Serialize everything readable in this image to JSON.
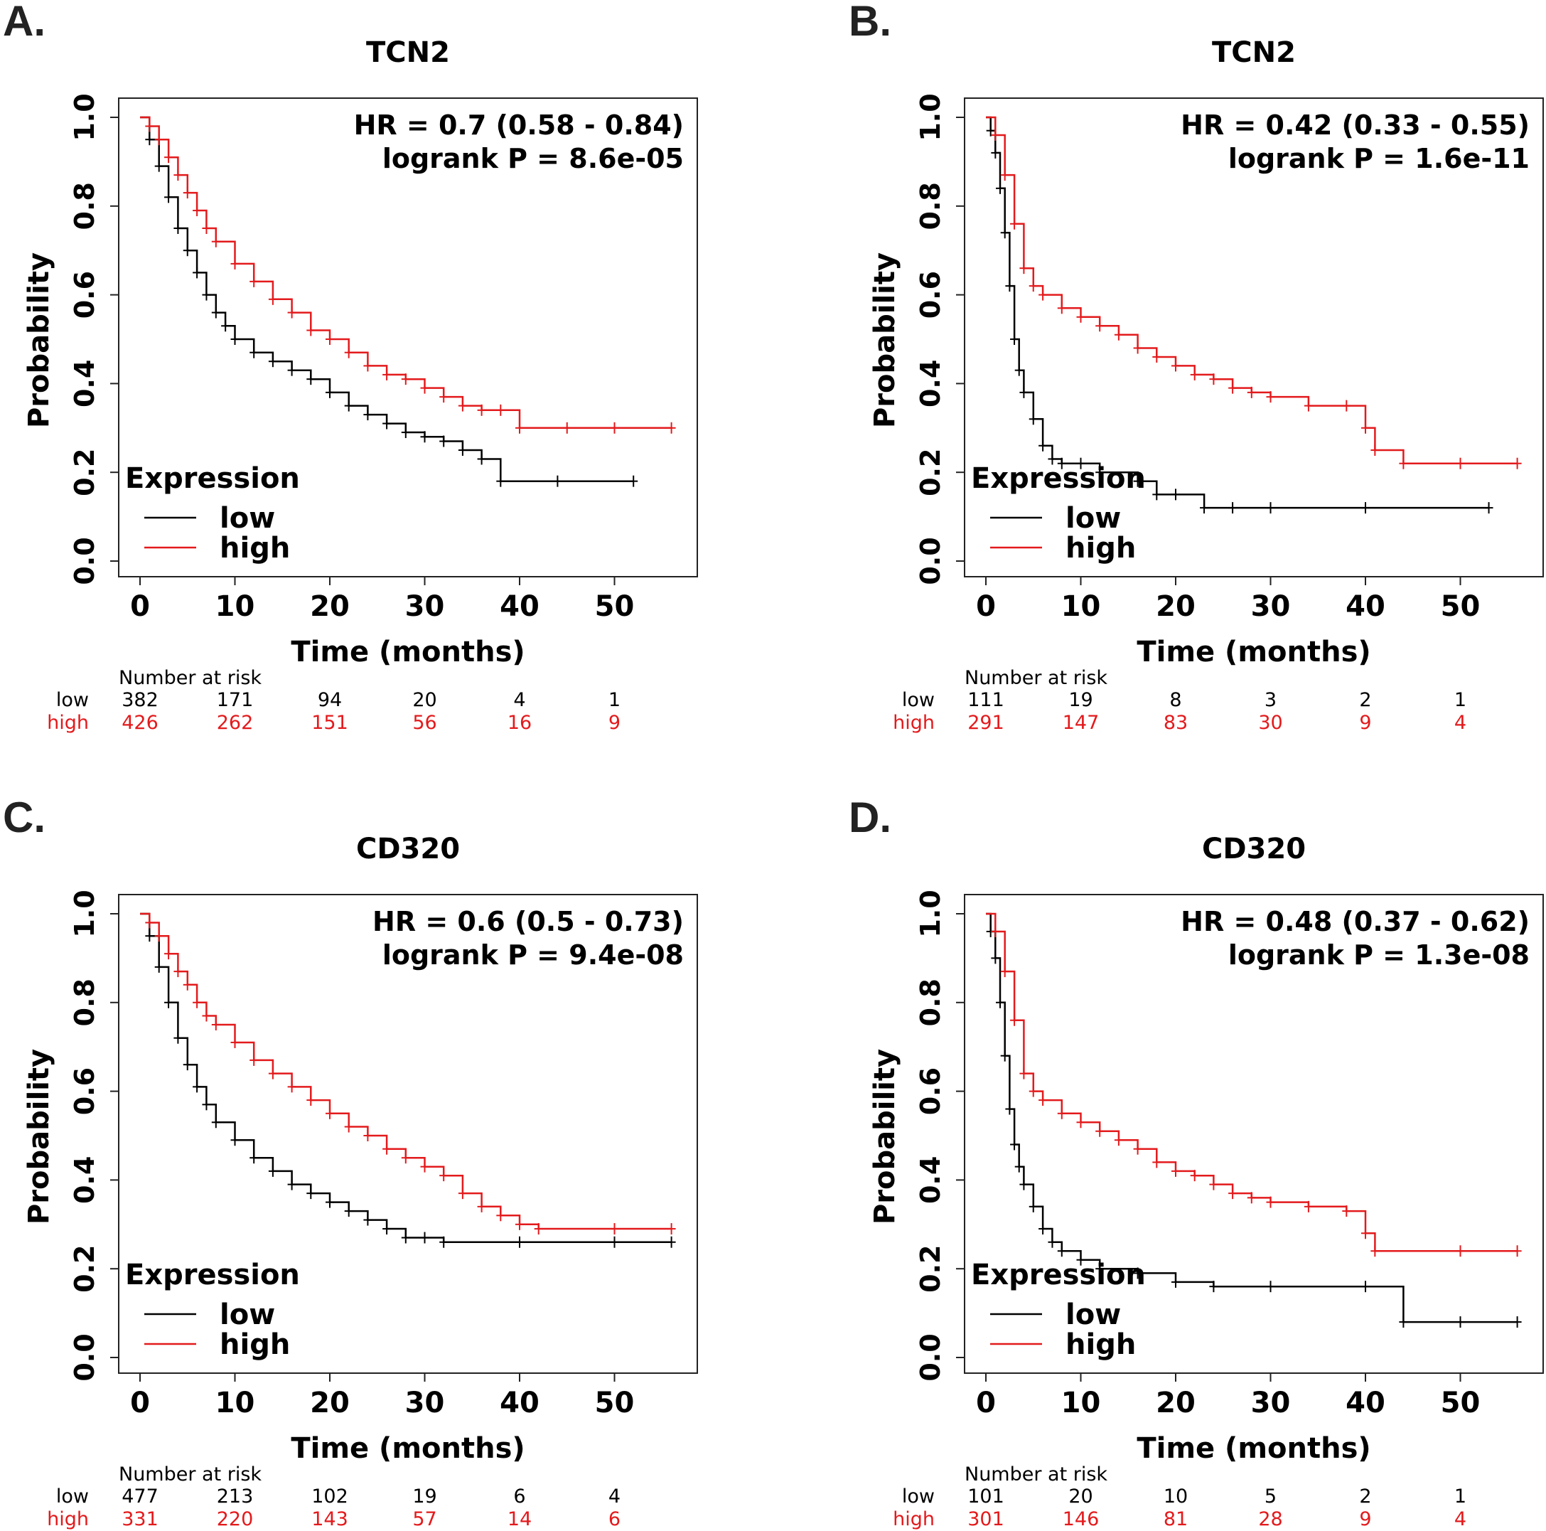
{
  "chart_data": [
    {
      "type": "line",
      "subtype": "kaplan-meier",
      "panel": "A.",
      "title": "TCN2",
      "xlabel": "Time (months)",
      "ylabel": "Probability",
      "xlim": [
        0,
        57
      ],
      "ylim": [
        0,
        1
      ],
      "xticks": [
        "0",
        "10",
        "20",
        "30",
        "40",
        "50"
      ],
      "yticks": [
        "0.0",
        "0.2",
        "0.4",
        "0.6",
        "0.8",
        "1.0"
      ],
      "stats": {
        "hr": "HR = 0.7 (0.58 - 0.84)",
        "logrank": "logrank P = 8.6e-05"
      },
      "legend": {
        "title": "Expression",
        "position": "bottom-left",
        "entries": [
          "low",
          "high"
        ]
      },
      "series": [
        {
          "name": "low",
          "color": "#000000",
          "x": [
            0,
            1,
            2,
            3,
            4,
            5,
            6,
            7,
            8,
            9,
            10,
            12,
            14,
            16,
            18,
            20,
            22,
            24,
            26,
            28,
            30,
            32,
            34,
            36,
            38,
            44,
            52
          ],
          "y": [
            1.0,
            0.95,
            0.89,
            0.82,
            0.75,
            0.7,
            0.65,
            0.6,
            0.56,
            0.53,
            0.5,
            0.47,
            0.45,
            0.43,
            0.41,
            0.38,
            0.35,
            0.33,
            0.31,
            0.29,
            0.28,
            0.27,
            0.25,
            0.23,
            0.18,
            0.18,
            0.18
          ]
        },
        {
          "name": "high",
          "color": "#e31a1c",
          "x": [
            0,
            1,
            2,
            3,
            4,
            5,
            6,
            7,
            8,
            10,
            12,
            14,
            16,
            18,
            20,
            22,
            24,
            26,
            28,
            30,
            32,
            34,
            36,
            38,
            40,
            45,
            50,
            56
          ],
          "y": [
            1.0,
            0.98,
            0.95,
            0.91,
            0.87,
            0.83,
            0.79,
            0.75,
            0.72,
            0.67,
            0.63,
            0.59,
            0.56,
            0.52,
            0.5,
            0.47,
            0.44,
            0.42,
            0.41,
            0.39,
            0.37,
            0.35,
            0.34,
            0.34,
            0.3,
            0.3,
            0.3,
            0.3
          ]
        }
      ],
      "risk_table": {
        "heading": "Number at risk",
        "times": [
          0,
          10,
          20,
          30,
          40,
          50
        ],
        "rows": [
          {
            "label": "low",
            "values": [
              "382",
              "171",
              "94",
              "20",
              "4",
              "1"
            ]
          },
          {
            "label": "high",
            "values": [
              "426",
              "262",
              "151",
              "56",
              "16",
              "9"
            ]
          }
        ]
      }
    },
    {
      "type": "line",
      "subtype": "kaplan-meier",
      "panel": "B.",
      "title": "TCN2",
      "xlabel": "Time (months)",
      "ylabel": "Probability",
      "xlim": [
        0,
        57
      ],
      "ylim": [
        0,
        1
      ],
      "xticks": [
        "0",
        "10",
        "20",
        "30",
        "40",
        "50"
      ],
      "yticks": [
        "0.0",
        "0.2",
        "0.4",
        "0.6",
        "0.8",
        "1.0"
      ],
      "stats": {
        "hr": "HR = 0.42 (0.33 - 0.55)",
        "logrank": "logrank P = 1.6e-11"
      },
      "legend": {
        "title": "Expression",
        "position": "bottom-left",
        "entries": [
          "low",
          "high"
        ]
      },
      "series": [
        {
          "name": "low",
          "color": "#000000",
          "x": [
            0,
            0.5,
            1,
            1.5,
            2,
            2.5,
            3,
            3.5,
            4,
            5,
            6,
            7,
            8,
            10,
            12,
            16,
            18,
            20,
            23,
            26,
            30,
            40,
            53
          ],
          "y": [
            1.0,
            0.97,
            0.92,
            0.84,
            0.74,
            0.62,
            0.5,
            0.43,
            0.38,
            0.32,
            0.26,
            0.23,
            0.22,
            0.22,
            0.2,
            0.18,
            0.15,
            0.15,
            0.12,
            0.12,
            0.12,
            0.12,
            0.12
          ]
        },
        {
          "name": "high",
          "color": "#e31a1c",
          "x": [
            0,
            1,
            2,
            3,
            4,
            5,
            6,
            8,
            10,
            12,
            14,
            16,
            18,
            20,
            22,
            24,
            26,
            28,
            30,
            34,
            38,
            40,
            41,
            44,
            50,
            56
          ],
          "y": [
            1.0,
            0.96,
            0.87,
            0.76,
            0.66,
            0.62,
            0.6,
            0.57,
            0.55,
            0.53,
            0.51,
            0.48,
            0.46,
            0.44,
            0.42,
            0.41,
            0.39,
            0.38,
            0.37,
            0.35,
            0.35,
            0.3,
            0.25,
            0.22,
            0.22,
            0.22
          ]
        }
      ],
      "risk_table": {
        "heading": "Number at risk",
        "times": [
          0,
          10,
          20,
          30,
          40,
          50
        ],
        "rows": [
          {
            "label": "low",
            "values": [
              "111",
              "19",
              "8",
              "3",
              "2",
              "1"
            ]
          },
          {
            "label": "high",
            "values": [
              "291",
              "147",
              "83",
              "30",
              "9",
              "4"
            ]
          }
        ]
      }
    },
    {
      "type": "line",
      "subtype": "kaplan-meier",
      "panel": "C.",
      "title": "CD320",
      "xlabel": "Time (months)",
      "ylabel": "Probability",
      "xlim": [
        0,
        57
      ],
      "ylim": [
        0,
        1
      ],
      "xticks": [
        "0",
        "10",
        "20",
        "30",
        "40",
        "50"
      ],
      "yticks": [
        "0.0",
        "0.2",
        "0.4",
        "0.6",
        "0.8",
        "1.0"
      ],
      "stats": {
        "hr": "HR = 0.6 (0.5 - 0.73)",
        "logrank": "logrank P = 9.4e-08"
      },
      "legend": {
        "title": "Expression",
        "position": "bottom-left",
        "entries": [
          "low",
          "high"
        ]
      },
      "series": [
        {
          "name": "low",
          "color": "#000000",
          "x": [
            0,
            1,
            2,
            3,
            4,
            5,
            6,
            7,
            8,
            10,
            12,
            14,
            16,
            18,
            20,
            22,
            24,
            26,
            28,
            30,
            32,
            40,
            50,
            56
          ],
          "y": [
            1.0,
            0.95,
            0.88,
            0.8,
            0.72,
            0.66,
            0.61,
            0.57,
            0.53,
            0.49,
            0.45,
            0.42,
            0.39,
            0.37,
            0.35,
            0.33,
            0.31,
            0.29,
            0.27,
            0.27,
            0.26,
            0.26,
            0.26,
            0.26
          ]
        },
        {
          "name": "high",
          "color": "#e31a1c",
          "x": [
            0,
            1,
            2,
            3,
            4,
            5,
            6,
            7,
            8,
            10,
            12,
            14,
            16,
            18,
            20,
            22,
            24,
            26,
            28,
            30,
            32,
            34,
            36,
            38,
            40,
            42,
            50,
            56
          ],
          "y": [
            1.0,
            0.98,
            0.95,
            0.91,
            0.87,
            0.84,
            0.8,
            0.77,
            0.75,
            0.71,
            0.67,
            0.64,
            0.61,
            0.58,
            0.55,
            0.52,
            0.5,
            0.47,
            0.45,
            0.43,
            0.41,
            0.37,
            0.34,
            0.32,
            0.3,
            0.29,
            0.29,
            0.29
          ]
        }
      ],
      "risk_table": {
        "heading": "Number at risk",
        "times": [
          0,
          10,
          20,
          30,
          40,
          50
        ],
        "rows": [
          {
            "label": "low",
            "values": [
              "477",
              "213",
              "102",
              "19",
              "6",
              "4"
            ]
          },
          {
            "label": "high",
            "values": [
              "331",
              "220",
              "143",
              "57",
              "14",
              "6"
            ]
          }
        ]
      }
    },
    {
      "type": "line",
      "subtype": "kaplan-meier",
      "panel": "D.",
      "title": "CD320",
      "xlabel": "Time (months)",
      "ylabel": "Probability",
      "xlim": [
        0,
        57
      ],
      "ylim": [
        0,
        1
      ],
      "xticks": [
        "0",
        "10",
        "20",
        "30",
        "40",
        "50"
      ],
      "yticks": [
        "0.0",
        "0.2",
        "0.4",
        "0.6",
        "0.8",
        "1.0"
      ],
      "stats": {
        "hr": "HR = 0.48 (0.37 - 0.62)",
        "logrank": "logrank P = 1.3e-08"
      },
      "legend": {
        "title": "Expression",
        "position": "bottom-left",
        "entries": [
          "low",
          "high"
        ]
      },
      "series": [
        {
          "name": "low",
          "color": "#000000",
          "x": [
            0,
            0.5,
            1,
            1.5,
            2,
            2.5,
            3,
            3.5,
            4,
            5,
            6,
            7,
            8,
            10,
            12,
            16,
            20,
            24,
            30,
            40,
            44,
            50,
            56
          ],
          "y": [
            1.0,
            0.96,
            0.9,
            0.8,
            0.68,
            0.56,
            0.48,
            0.43,
            0.39,
            0.34,
            0.29,
            0.26,
            0.24,
            0.22,
            0.2,
            0.19,
            0.17,
            0.16,
            0.16,
            0.16,
            0.08,
            0.08,
            0.08
          ]
        },
        {
          "name": "high",
          "color": "#e31a1c",
          "x": [
            0,
            1,
            2,
            3,
            4,
            5,
            6,
            8,
            10,
            12,
            14,
            16,
            18,
            20,
            22,
            24,
            26,
            28,
            30,
            34,
            38,
            40,
            41,
            50,
            56
          ],
          "y": [
            1.0,
            0.96,
            0.87,
            0.76,
            0.64,
            0.6,
            0.58,
            0.55,
            0.53,
            0.51,
            0.49,
            0.47,
            0.44,
            0.42,
            0.41,
            0.39,
            0.37,
            0.36,
            0.35,
            0.34,
            0.33,
            0.28,
            0.24,
            0.24,
            0.24
          ]
        }
      ],
      "risk_table": {
        "heading": "Number at risk",
        "times": [
          0,
          10,
          20,
          30,
          40,
          50
        ],
        "rows": [
          {
            "label": "low",
            "values": [
              "101",
              "20",
              "10",
              "5",
              "2",
              "1"
            ]
          },
          {
            "label": "high",
            "values": [
              "301",
              "146",
              "81",
              "28",
              "9",
              "4"
            ]
          }
        ]
      }
    }
  ]
}
